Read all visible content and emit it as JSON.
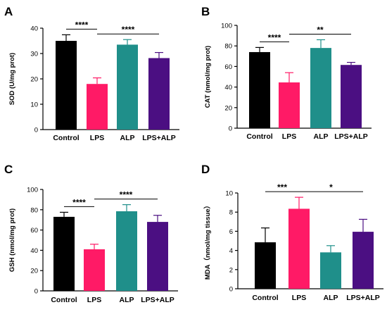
{
  "figure": {
    "colors": {
      "Control": "#000000",
      "LPS": "#ff1a66",
      "ALP": "#1f8f8a",
      "LPS+ALP": "#4b0f82"
    }
  },
  "chart_data": [
    {
      "panel": "A",
      "type": "bar",
      "ylabel": "SOD (U/mg prot)",
      "ylim": [
        0,
        40
      ],
      "yticks": [
        0,
        10,
        20,
        30,
        40
      ],
      "categories": [
        "Control",
        "LPS",
        "ALP",
        "LPS+ALP"
      ],
      "values": [
        35.0,
        18.0,
        33.5,
        28.2
      ],
      "errors": [
        2.4,
        2.4,
        2.0,
        2.2
      ],
      "significance": [
        {
          "from": "Control",
          "to": "LPS",
          "label": "****"
        },
        {
          "from": "LPS",
          "to": "LPS+ALP",
          "label": "****"
        }
      ]
    },
    {
      "panel": "B",
      "type": "bar",
      "ylabel": "CAT (nmol/mg prot)",
      "ylim": [
        0,
        100
      ],
      "yticks": [
        0,
        20,
        40,
        60,
        80,
        100
      ],
      "categories": [
        "Control",
        "LPS",
        "ALP",
        "LPS+ALP"
      ],
      "values": [
        74.0,
        44.5,
        78.0,
        61.5
      ],
      "errors": [
        4.5,
        9.5,
        8.0,
        2.5
      ],
      "significance": [
        {
          "from": "Control",
          "to": "LPS",
          "label": "****"
        },
        {
          "from": "LPS",
          "to": "LPS+ALP",
          "label": "**"
        }
      ]
    },
    {
      "panel": "C",
      "type": "bar",
      "ylabel": "GSH (nmol/mg prot)",
      "ylim": [
        0,
        100
      ],
      "yticks": [
        0,
        20,
        40,
        60,
        80,
        100
      ],
      "categories": [
        "Control",
        "LPS",
        "ALP",
        "LPS+ALP"
      ],
      "values": [
        73.0,
        41.0,
        78.5,
        68.0
      ],
      "errors": [
        4.5,
        5.0,
        6.5,
        6.5
      ],
      "significance": [
        {
          "from": "Control",
          "to": "LPS",
          "label": "****"
        },
        {
          "from": "LPS",
          "to": "LPS+ALP",
          "label": "****"
        }
      ]
    },
    {
      "panel": "D",
      "type": "bar",
      "ylabel": "MDA（nmol/mg tissue）",
      "ylim": [
        0,
        10
      ],
      "yticks": [
        0,
        2,
        4,
        6,
        8,
        10
      ],
      "categories": [
        "Control",
        "LPS",
        "ALP",
        "LPS+ALP"
      ],
      "values": [
        4.85,
        8.35,
        3.8,
        5.95
      ],
      "errors": [
        1.5,
        1.2,
        0.7,
        1.3
      ],
      "significance": [
        {
          "from": "Control",
          "to": "LPS",
          "label": "***"
        },
        {
          "from": "LPS",
          "to": "LPS+ALP",
          "label": "*"
        }
      ]
    }
  ]
}
